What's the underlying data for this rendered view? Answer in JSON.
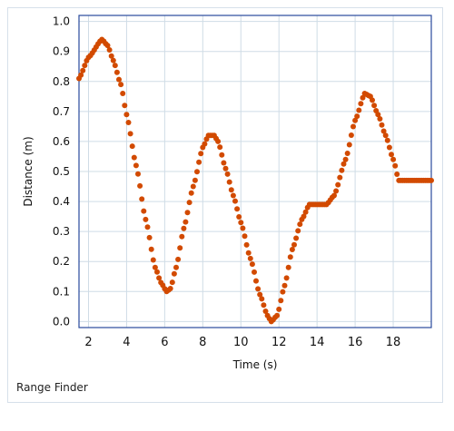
{
  "panel": {
    "caption": "Range Finder"
  },
  "chart_data": {
    "type": "scatter",
    "xlabel": "Time (s)",
    "ylabel": "Distance (m)",
    "xlim": [
      1.5,
      20
    ],
    "ylim": [
      -0.02,
      1.02
    ],
    "xticks": [
      2,
      4,
      6,
      8,
      10,
      12,
      14,
      16,
      18
    ],
    "yticks": [
      0.0,
      0.1,
      0.2,
      0.3,
      0.4,
      0.5,
      0.6,
      0.7,
      0.8,
      0.9,
      1.0
    ],
    "ytick_labels": [
      "0.0",
      "0.1",
      "0.2",
      "0.3",
      "0.4",
      "0.5",
      "0.6",
      "0.7",
      "0.8",
      "0.9",
      "1.0"
    ],
    "grid": true,
    "color": "#d24a00",
    "sample_step_s": 0.1,
    "series": [
      {
        "x": [
          1.5,
          2.0,
          2.7,
          3.0,
          3.3,
          3.7,
          4.0,
          4.5,
          5.0,
          5.5,
          5.8,
          6.1,
          6.3,
          6.6,
          7.0,
          7.5,
          8.0,
          8.3,
          8.6,
          8.8,
          9.2,
          9.6,
          10.0,
          10.5,
          11.0,
          11.4,
          11.6,
          11.9,
          12.3,
          12.7,
          13.2,
          13.6,
          14.0,
          14.5,
          14.9,
          15.5,
          16.0,
          16.5,
          16.8,
          17.2,
          17.6,
          18.0,
          18.3,
          20.0
        ],
        "y": [
          0.81,
          0.88,
          0.94,
          0.92,
          0.87,
          0.79,
          0.69,
          0.52,
          0.34,
          0.18,
          0.13,
          0.1,
          0.11,
          0.18,
          0.31,
          0.45,
          0.58,
          0.62,
          0.62,
          0.6,
          0.51,
          0.42,
          0.33,
          0.21,
          0.09,
          0.02,
          0.0,
          0.02,
          0.12,
          0.24,
          0.34,
          0.39,
          0.39,
          0.39,
          0.42,
          0.54,
          0.67,
          0.76,
          0.75,
          0.69,
          0.62,
          0.54,
          0.47,
          0.47
        ]
      }
    ]
  }
}
